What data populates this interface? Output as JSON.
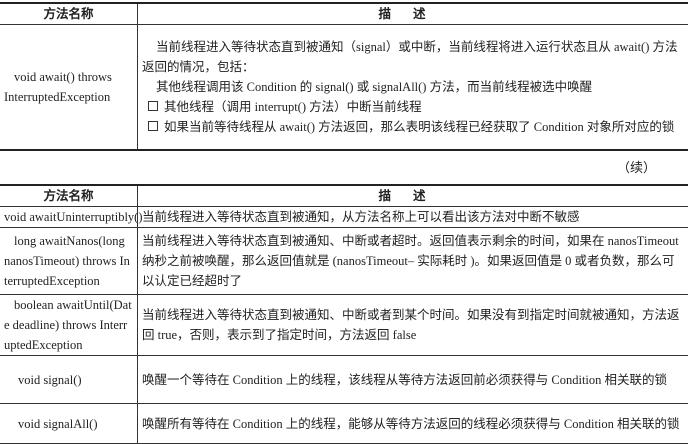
{
  "table1": {
    "headers": [
      "方法名称",
      "描述"
    ],
    "rows": [
      {
        "name": "void await() throws InterruptedException",
        "desc": [
          "当前线程进入等待状态直到被通知（signal）或中断，当前线程将进入运行状态且从 await() 方法返回的情况，包括：",
          "其他线程调用该 Condition 的 signal() 或 signalAll() 方法，而当前线程被选中唤醒"
        ],
        "bullets": [
          "其他线程（调用 interrupt() 方法）中断当前线程",
          "如果当前等待线程从 await() 方法返回，那么表明该线程已经获取了 Condition 对象所对应的锁"
        ]
      }
    ]
  },
  "continued_label": "（续）",
  "table2": {
    "headers": [
      "方法名称",
      "描述"
    ],
    "rows": [
      {
        "name": "void awaitUninterruptibly()",
        "desc": "当前线程进入等待状态直到被通知，从方法名称上可以看出该方法对中断不敏感"
      },
      {
        "name": "long awaitNanos(long nanosTimeout) throws InterruptedException",
        "desc": "当前线程进入等待状态直到被通知、中断或者超时。返回值表示剩余的时间，如果在 nanosTimeout 纳秒之前被唤醒，那么返回值就是 (nanosTimeout– 实际耗时 )。如果返回值是 0 或者负数，那么可以认定已经超时了"
      },
      {
        "name": "boolean awaitUntil(Date deadline) throws InterruptedException",
        "desc": "当前线程进入等待状态直到被通知、中断或者到某个时间。如果没有到指定时间就被通知，方法返回 true，否则，表示到了指定时间，方法返回 false"
      },
      {
        "name": "void signal()",
        "desc": "唤醒一个等待在 Condition 上的线程，该线程从等待方法返回前必须获得与 Condition 相关联的锁"
      },
      {
        "name": "void signalAll()",
        "desc": "唤醒所有等待在 Condition 上的线程，能够从等待方法返回的线程必须获得与 Condition 相关联的锁"
      }
    ]
  }
}
